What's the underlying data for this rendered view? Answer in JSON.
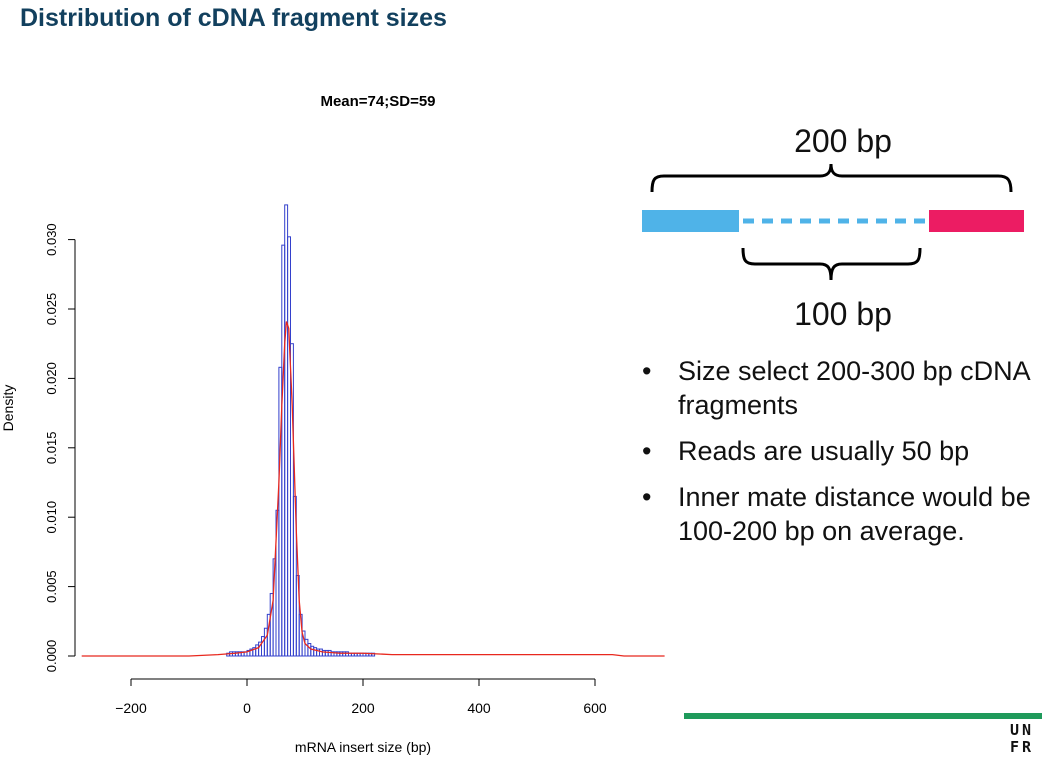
{
  "slide": {
    "title": "Distribution of cDNA fragment sizes"
  },
  "chart_data": {
    "type": "bar",
    "title": "Mean=74;SD=59",
    "xlabel": "mRNA insert size (bp)",
    "ylabel": "Density",
    "xlim": [
      -285,
      720
    ],
    "ylim": [
      0,
      0.0325
    ],
    "x_ticks": [
      -200,
      0,
      200,
      400,
      600
    ],
    "x_tick_labels": [
      "−200",
      "0",
      "200",
      "400",
      "600"
    ],
    "y_ticks": [
      0.0,
      0.005,
      0.01,
      0.015,
      0.02,
      0.025,
      0.03
    ],
    "y_tick_labels": [
      "0.000",
      "0.005",
      "0.010",
      "0.015",
      "0.020",
      "0.025",
      "0.030"
    ],
    "grid": false,
    "colors": {
      "histogram": "#3340cc",
      "density": "#e8281e",
      "axis": "#000000"
    },
    "histogram": {
      "bin_width": 5,
      "bins": [
        {
          "x0": -35,
          "density": 0.0002
        },
        {
          "x0": -30,
          "density": 0.0003
        },
        {
          "x0": -25,
          "density": 0.0003
        },
        {
          "x0": -20,
          "density": 0.0003
        },
        {
          "x0": -15,
          "density": 0.0003
        },
        {
          "x0": -10,
          "density": 0.0003
        },
        {
          "x0": -5,
          "density": 0.0003
        },
        {
          "x0": 0,
          "density": 0.0004
        },
        {
          "x0": 5,
          "density": 0.0005
        },
        {
          "x0": 10,
          "density": 0.0006
        },
        {
          "x0": 15,
          "density": 0.0008
        },
        {
          "x0": 20,
          "density": 0.001
        },
        {
          "x0": 25,
          "density": 0.0014
        },
        {
          "x0": 30,
          "density": 0.002
        },
        {
          "x0": 35,
          "density": 0.003
        },
        {
          "x0": 40,
          "density": 0.0045
        },
        {
          "x0": 45,
          "density": 0.007
        },
        {
          "x0": 50,
          "density": 0.0105
        },
        {
          "x0": 55,
          "density": 0.0208
        },
        {
          "x0": 60,
          "density": 0.0296
        },
        {
          "x0": 65,
          "density": 0.0325
        },
        {
          "x0": 70,
          "density": 0.0302
        },
        {
          "x0": 75,
          "density": 0.0225
        },
        {
          "x0": 80,
          "density": 0.0115
        },
        {
          "x0": 85,
          "density": 0.0058
        },
        {
          "x0": 90,
          "density": 0.003
        },
        {
          "x0": 95,
          "density": 0.0018
        },
        {
          "x0": 100,
          "density": 0.0012
        },
        {
          "x0": 105,
          "density": 0.0009
        },
        {
          "x0": 110,
          "density": 0.0007
        },
        {
          "x0": 115,
          "density": 0.0006
        },
        {
          "x0": 120,
          "density": 0.0005
        },
        {
          "x0": 125,
          "density": 0.0005
        },
        {
          "x0": 130,
          "density": 0.0004
        },
        {
          "x0": 135,
          "density": 0.0004
        },
        {
          "x0": 140,
          "density": 0.0004
        },
        {
          "x0": 145,
          "density": 0.0003
        },
        {
          "x0": 150,
          "density": 0.0003
        },
        {
          "x0": 155,
          "density": 0.0003
        },
        {
          "x0": 160,
          "density": 0.0003
        },
        {
          "x0": 165,
          "density": 0.0003
        },
        {
          "x0": 170,
          "density": 0.0003
        },
        {
          "x0": 175,
          "density": 0.0002
        },
        {
          "x0": 180,
          "density": 0.0002
        },
        {
          "x0": 185,
          "density": 0.0002
        },
        {
          "x0": 190,
          "density": 0.0002
        },
        {
          "x0": 195,
          "density": 0.0002
        },
        {
          "x0": 200,
          "density": 0.0002
        },
        {
          "x0": 205,
          "density": 0.0002
        },
        {
          "x0": 210,
          "density": 0.0002
        },
        {
          "x0": 215,
          "density": 0.0002
        }
      ]
    },
    "density_curve": {
      "x": [
        -285,
        -200,
        -100,
        -50,
        -20,
        0,
        20,
        35,
        45,
        55,
        60,
        65,
        68,
        72,
        78,
        85,
        90,
        95,
        100,
        110,
        130,
        160,
        200,
        250,
        300,
        350,
        400,
        450,
        500,
        550,
        600,
        630,
        650,
        700,
        720
      ],
      "y": [
        0.0,
        0.0,
        0.0,
        0.0001,
        0.0002,
        0.0003,
        0.0006,
        0.0015,
        0.004,
        0.0125,
        0.018,
        0.0225,
        0.0241,
        0.0236,
        0.018,
        0.009,
        0.004,
        0.0017,
        0.0009,
        0.0005,
        0.0003,
        0.0002,
        0.0002,
        0.0001,
        0.0001,
        0.0001,
        0.0001,
        0.0001,
        0.0001,
        0.0001,
        0.0001,
        0.0001,
        0.0,
        0.0,
        0.0
      ]
    }
  },
  "diagram": {
    "top_label": "200 bp",
    "bottom_label": "100 bp",
    "colors": {
      "read1": "#4fb3e8",
      "gap": "#4fb3e8",
      "read2": "#ec1c63",
      "brace": "#000000"
    }
  },
  "bullets": [
    {
      "text": "Size select 200-300 bp cDNA fragments"
    },
    {
      "text": "Reads are usually 50 bp"
    },
    {
      "text": "Inner mate distance would be 100-200 bp on average."
    }
  ],
  "footer": {
    "rule_color": "#1f9a5b",
    "logo_line1": "UN",
    "logo_line2": "FR"
  }
}
